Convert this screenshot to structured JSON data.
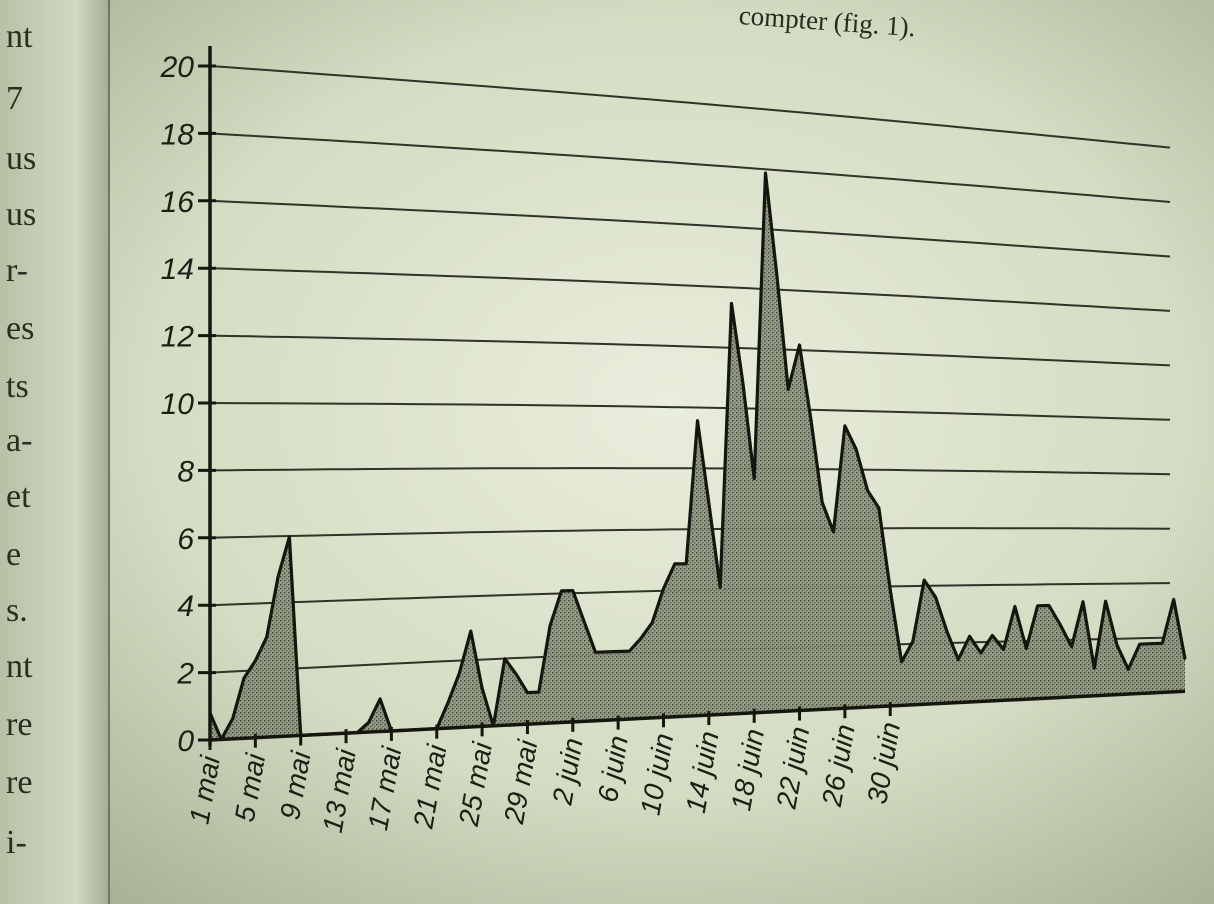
{
  "page": {
    "top_text": "compter (fig. 1).",
    "gutter_fragments": [
      "nt",
      "7",
      "us",
      "us",
      "r-",
      "es",
      "ts",
      "a-",
      "et",
      "e",
      "s.",
      "nt",
      "re",
      "re",
      "i-"
    ]
  },
  "chart_data": {
    "type": "area",
    "title": "",
    "xlabel": "",
    "ylabel": "",
    "ylim": [
      0,
      20
    ],
    "yticks": [
      0,
      2,
      4,
      6,
      8,
      10,
      12,
      14,
      16,
      18,
      20
    ],
    "grid": true,
    "xtick_labels": [
      "1 mai",
      "5 mai",
      "9 mai",
      "13 mai",
      "17 mai",
      "21 mai",
      "25 mai",
      "29 mai",
      "2 juin",
      "6 juin",
      "10 juin",
      "14 juin",
      "18 juin",
      "22 juin",
      "26 juin",
      "30 juin"
    ],
    "series": [
      {
        "x_start": "1 mai",
        "points_per_tick": 4,
        "values": [
          0.8,
          0,
          0.6,
          1.8,
          2.3,
          3,
          4.8,
          6,
          0,
          0,
          0,
          0,
          0,
          0,
          0.3,
          1,
          0,
          0,
          0,
          0,
          0,
          0.8,
          1.7,
          3,
          1.2,
          0,
          2.1,
          1.6,
          1,
          1,
          3.1,
          4.2,
          4.2,
          3.2,
          2.2,
          2.2,
          2.2,
          2.2,
          2.6,
          3.1,
          4.2,
          5,
          5,
          9.7,
          7,
          4.2,
          13.6,
          11,
          7.8,
          18,
          14.6,
          10.8,
          12.3,
          9.8,
          7,
          6,
          9.6,
          8.8,
          7.4,
          6.8,
          4,
          1.5,
          2.2,
          4.3,
          3.7,
          2.5,
          1.5,
          2.3,
          1.7,
          2.3,
          1.8,
          3.3,
          1.8,
          3.3,
          3.3,
          2.6,
          1.8,
          3.4,
          1,
          3.4,
          1.8,
          0.9,
          1.8,
          1.8,
          1.8,
          3.4,
          1.2
        ]
      }
    ]
  }
}
